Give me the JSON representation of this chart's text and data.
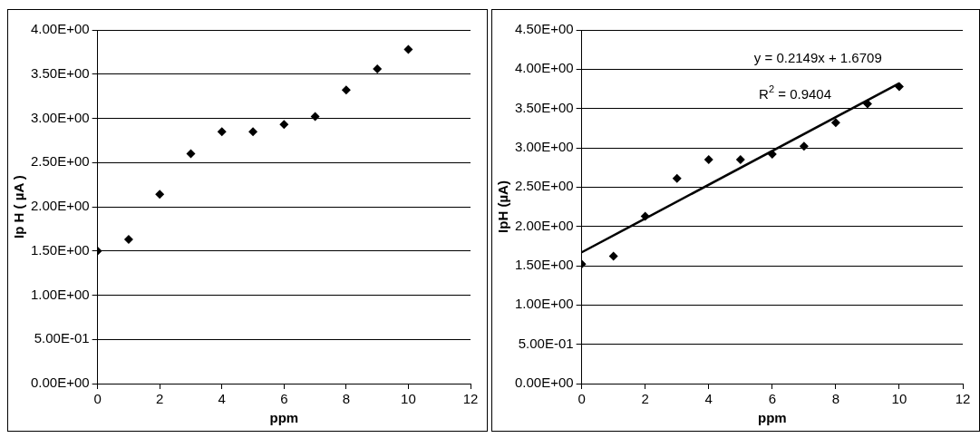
{
  "chart_data": [
    {
      "type": "scatter",
      "xlabel": "ppm",
      "ylabel": "Ip H ( µA )",
      "x": [
        0,
        1,
        2,
        3,
        4,
        5,
        6,
        7,
        8,
        9,
        10
      ],
      "series": [
        {
          "color": "#000000",
          "values": [
            1.5,
            1.63,
            2.14,
            2.6,
            2.85,
            2.85,
            2.93,
            3.02,
            3.32,
            3.56,
            3.78
          ]
        }
      ],
      "xlim": [
        0,
        12
      ],
      "xticks": [
        0,
        2,
        4,
        6,
        8,
        10,
        12
      ],
      "ylim": [
        0,
        4
      ],
      "yticks": [
        {
          "value": 0,
          "label": "0.00E+00"
        },
        {
          "value": 0.5,
          "label": "5.00E-01"
        },
        {
          "value": 1,
          "label": "1.00E+00"
        },
        {
          "value": 1.5,
          "label": "1.50E+00"
        },
        {
          "value": 2,
          "label": "2.00E+00"
        },
        {
          "value": 2.5,
          "label": "2.50E+00"
        },
        {
          "value": 3,
          "label": "3.00E+00"
        },
        {
          "value": 3.5,
          "label": "3.50E+00"
        },
        {
          "value": 4,
          "label": "4.00E+00"
        }
      ],
      "grid": "y",
      "legend": false,
      "marker": "diamond"
    },
    {
      "type": "scatter",
      "xlabel": "ppm",
      "ylabel": "IpH (µA)",
      "x": [
        0,
        1,
        2,
        3,
        4,
        5,
        6,
        7,
        8,
        9,
        10
      ],
      "series": [
        {
          "color": "#000000",
          "values": [
            1.52,
            1.62,
            2.13,
            2.61,
            2.85,
            2.85,
            2.92,
            3.02,
            3.32,
            3.56,
            3.78
          ]
        },
        {
          "type": "line",
          "color": "#000000",
          "x": [
            0,
            10
          ],
          "values": [
            1.67,
            3.82
          ],
          "marker": "none"
        }
      ],
      "xlim": [
        0,
        12
      ],
      "xticks": [
        0,
        2,
        4,
        6,
        8,
        10,
        12
      ],
      "ylim": [
        0,
        4.5
      ],
      "yticks": [
        {
          "value": 0,
          "label": "0.00E+00"
        },
        {
          "value": 0.5,
          "label": "5.00E-01"
        },
        {
          "value": 1,
          "label": "1.00E+00"
        },
        {
          "value": 1.5,
          "label": "1.50E+00"
        },
        {
          "value": 2,
          "label": "2.00E+00"
        },
        {
          "value": 2.5,
          "label": "2.50E+00"
        },
        {
          "value": 3,
          "label": "3.00E+00"
        },
        {
          "value": 3.5,
          "label": "3.50E+00"
        },
        {
          "value": 4,
          "label": "4.00E+00"
        },
        {
          "value": 4.5,
          "label": "4.50E+00"
        }
      ],
      "annotations": [
        "y = 0.2149x + 1.6709",
        "R$^{2}$ = 0.9404"
      ],
      "grid": "y",
      "legend": false,
      "marker": "diamond"
    }
  ]
}
